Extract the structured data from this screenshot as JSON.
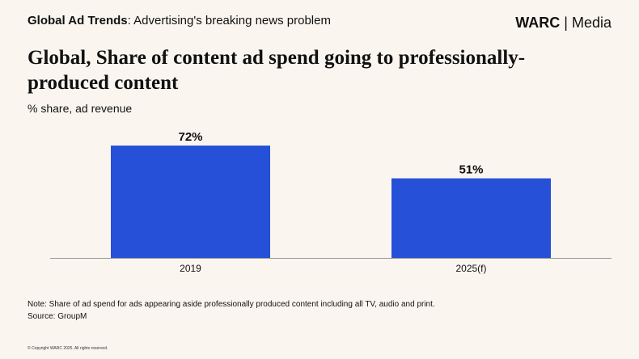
{
  "header": {
    "kicker_bold": "Global Ad Trends",
    "kicker_rest": ": Advertising's breaking news problem",
    "brand_name": "WARC",
    "brand_separator": "|",
    "brand_section": "Media"
  },
  "title": "Global, Share of content ad spend going to professionally-produced content",
  "subtitle": "% share, ad revenue",
  "chart_data": {
    "type": "bar",
    "title": "Global, Share of content ad spend going to professionally-produced content",
    "ylabel": "% share, ad revenue",
    "xlabel": "",
    "categories": [
      "2019",
      "2025(f)"
    ],
    "values": [
      72,
      51
    ],
    "data_labels": [
      "72%",
      "51%"
    ],
    "ylim": [
      0,
      100
    ],
    "grid": false,
    "bar_color": "#2650d8"
  },
  "footer": {
    "note": "Note: Share of ad spend for ads appearing aside professionally produced content including all TV, audio and print.",
    "source": "Source: GroupM",
    "copyright": "© Copyright WARC 2025. All rights reserved."
  },
  "colors": {
    "background": "#faf6ef",
    "bar": "#2650d8",
    "axis": "#9a9a9a"
  }
}
